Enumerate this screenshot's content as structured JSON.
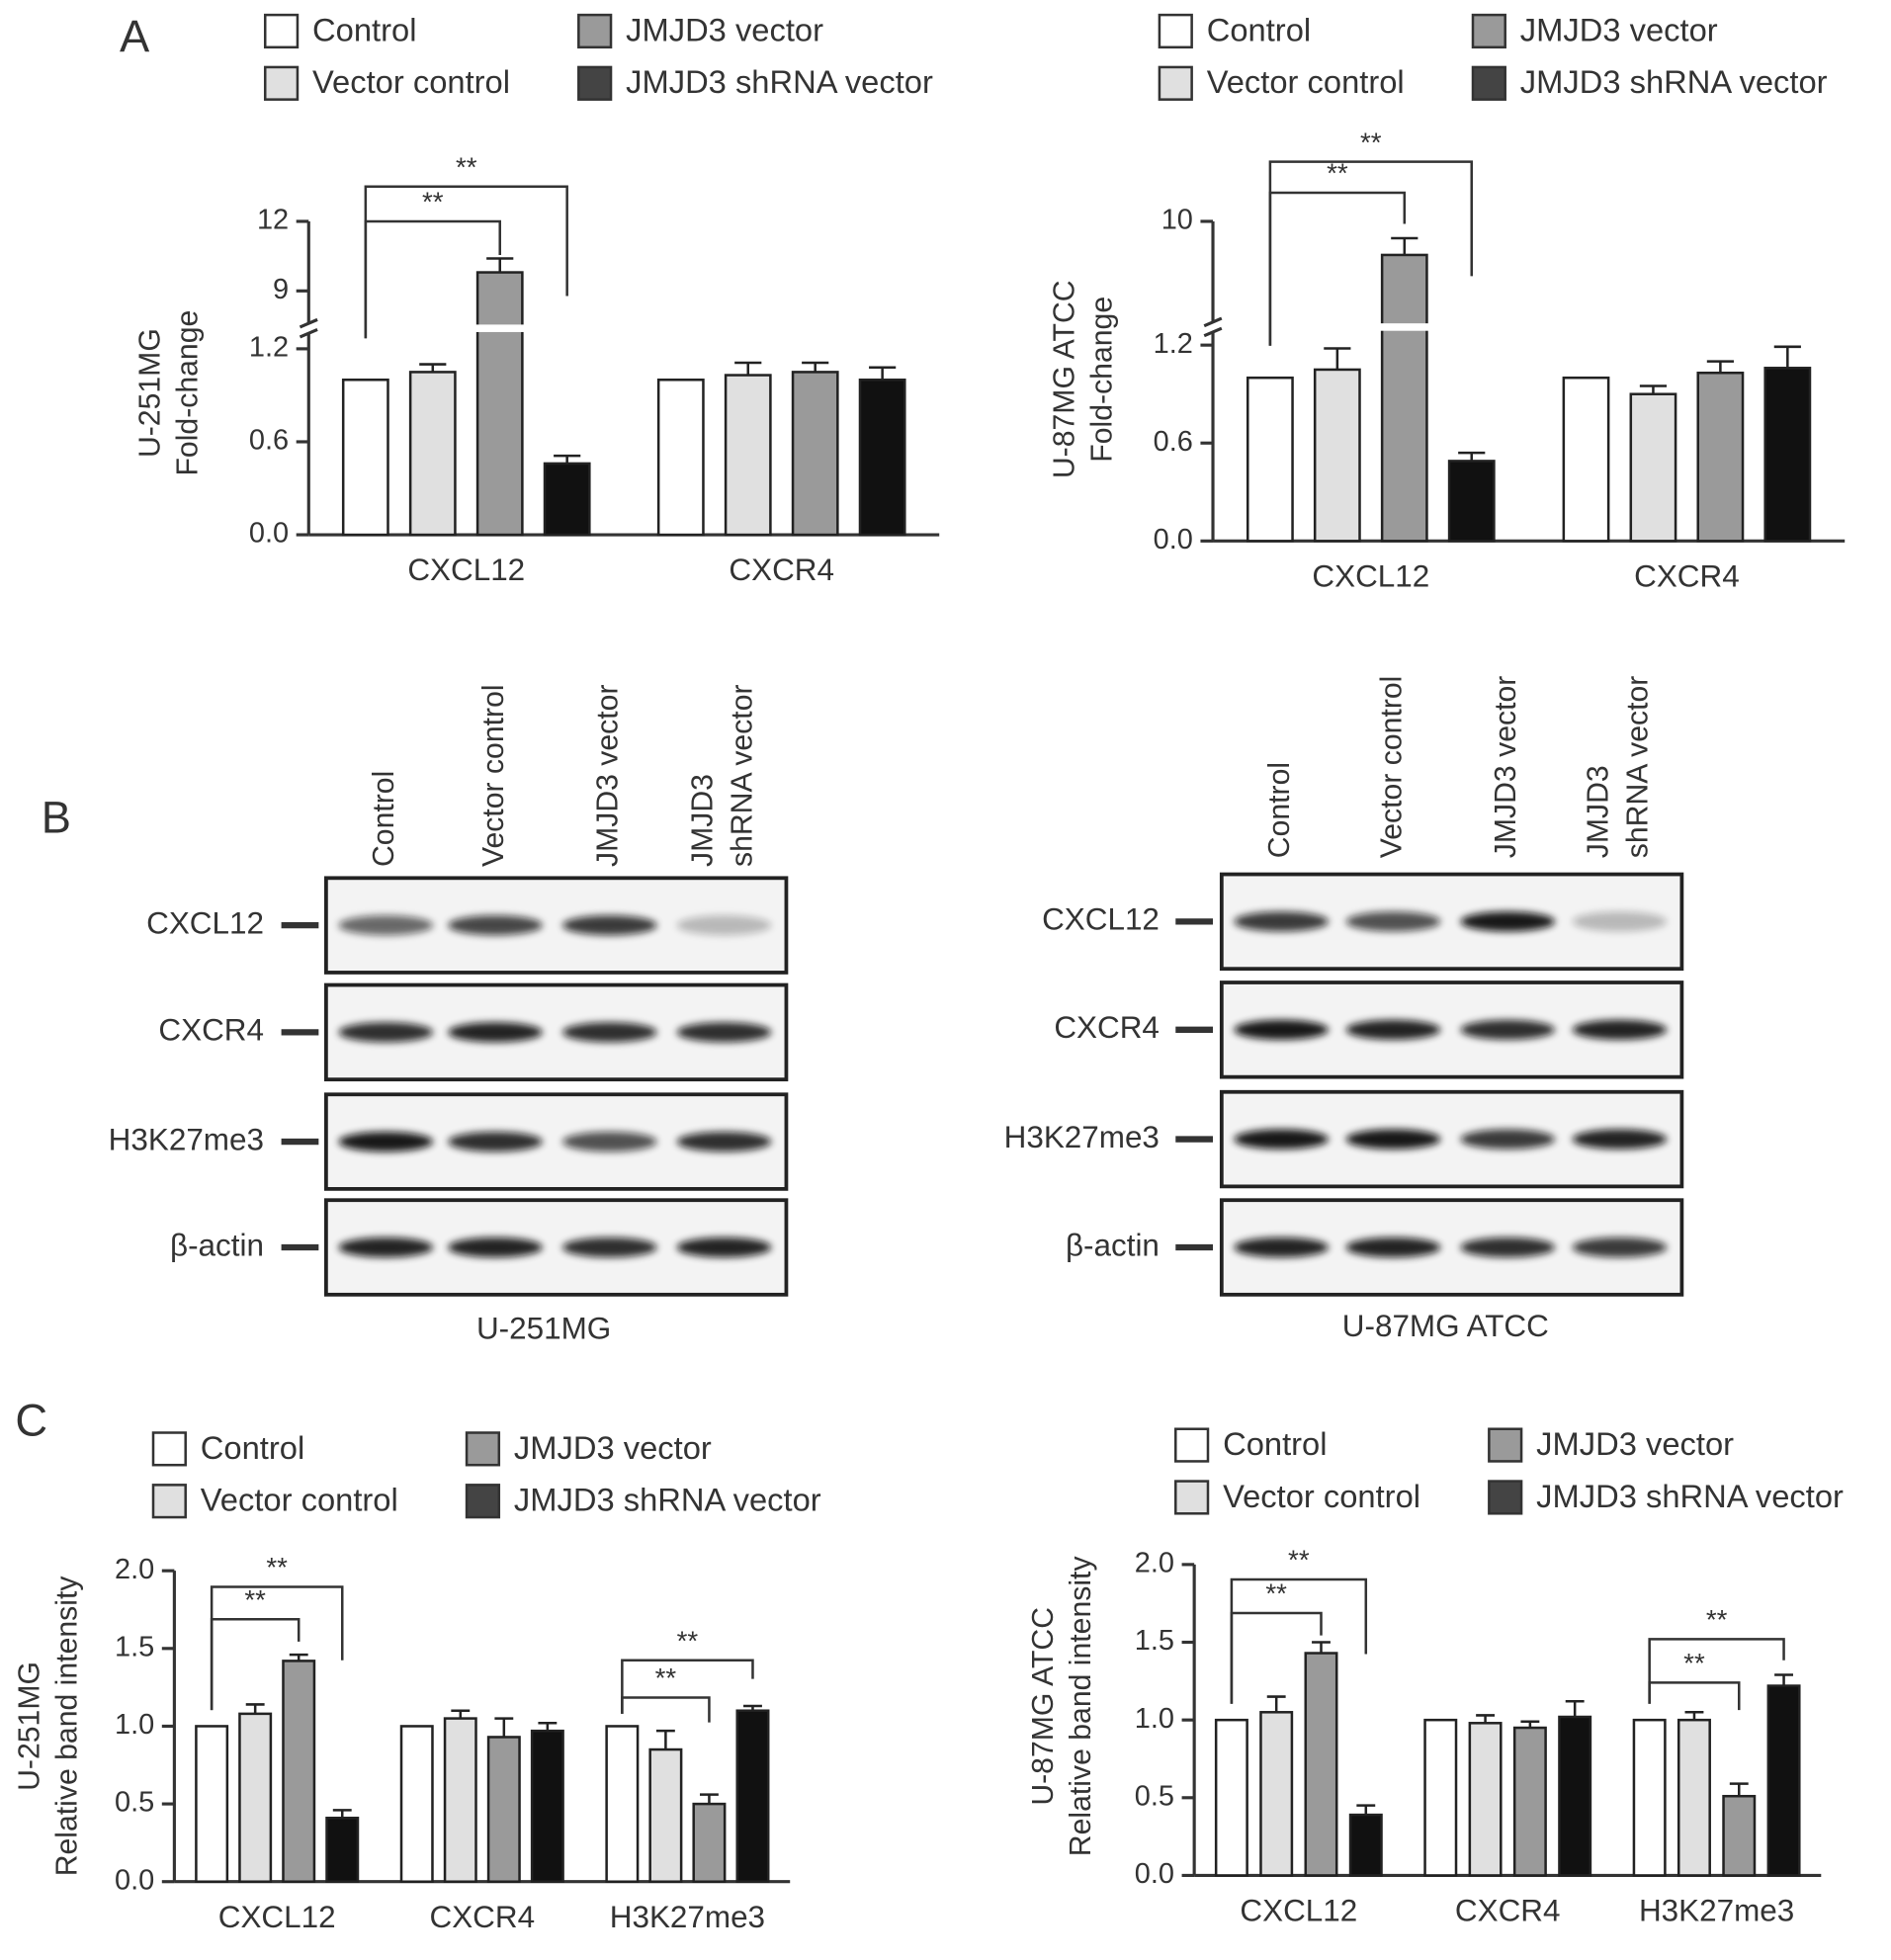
{
  "panel_labels": [
    "A",
    "B",
    "C"
  ],
  "chart_data": [
    {
      "type": "bar",
      "ylabel": [
        "U-251MG",
        "Fold-change"
      ],
      "categories": [
        "CXCL12",
        "CXCR4"
      ],
      "series": [
        {
          "name": "Control",
          "color": "#ffffff",
          "values": [
            1.0,
            1.0
          ],
          "errors": [
            null,
            null
          ]
        },
        {
          "name": "Vector control",
          "color": "#e0e0e0",
          "values": [
            1.05,
            1.03
          ],
          "errors": [
            0.05,
            0.08
          ]
        },
        {
          "name": "JMJD3 vector",
          "color": "#9a9a9a",
          "values": [
            9.8,
            1.05
          ],
          "errors": [
            0.6,
            0.06
          ]
        },
        {
          "name": "JMJD3 shRNA vector",
          "color": "#111111",
          "values": [
            0.46,
            1.0
          ],
          "errors": [
            0.05,
            0.08
          ]
        }
      ],
      "ylim": [
        0,
        12
      ],
      "ybreak": [
        1.3,
        7.6
      ],
      "yticks": [
        {
          "value": 0,
          "label": "0.0"
        },
        0.6,
        1.2,
        9,
        12
      ],
      "annotations": [
        "**",
        "**"
      ]
    },
    {
      "type": "bar",
      "ylabel": [
        "U-87MG ATCC",
        "Fold-change"
      ],
      "categories": [
        "CXCL12",
        "CXCR4"
      ],
      "series": [
        {
          "name": "Control",
          "color": "#ffffff",
          "values": [
            1.0,
            1.0
          ],
          "errors": [
            null,
            null
          ]
        },
        {
          "name": "Vector control",
          "color": "#e0e0e0",
          "values": [
            1.05,
            0.9
          ],
          "errors": [
            0.13,
            0.05
          ]
        },
        {
          "name": "JMJD3 vector",
          "color": "#9a9a9a",
          "values": [
            9.0,
            1.03
          ],
          "errors": [
            0.5,
            0.07
          ]
        },
        {
          "name": "JMJD3 shRNA vector",
          "color": "#111111",
          "values": [
            0.49,
            1.06
          ],
          "errors": [
            0.05,
            0.13
          ]
        }
      ],
      "ylim": [
        0,
        10
      ],
      "ybreak": [
        1.28,
        7
      ],
      "yticks": [
        {
          "value": 0,
          "label": "0.0"
        },
        0.6,
        1.2,
        10
      ],
      "annotations": [
        "**",
        "**"
      ]
    },
    {
      "type": "bar",
      "ylabel": [
        "U-251MG",
        "Relative band intensity"
      ],
      "categories": [
        "CXCL12",
        "CXCR4",
        "H3K27me3"
      ],
      "series": [
        {
          "name": "Control",
          "color": "#ffffff",
          "values": [
            1.0,
            1.0,
            1.0
          ],
          "errors": [
            null,
            null,
            null
          ]
        },
        {
          "name": "Vector control",
          "color": "#e0e0e0",
          "values": [
            1.08,
            1.05,
            0.85
          ],
          "errors": [
            0.06,
            0.05,
            0.12
          ]
        },
        {
          "name": "JMJD3 vector",
          "color": "#9a9a9a",
          "values": [
            1.42,
            0.93,
            0.5
          ],
          "errors": [
            0.04,
            0.12,
            0.06
          ]
        },
        {
          "name": "JMJD3 shRNA vector",
          "color": "#111111",
          "values": [
            0.41,
            0.97,
            1.1
          ],
          "errors": [
            0.05,
            0.05,
            0.03
          ]
        }
      ],
      "ylim": [
        0,
        2
      ],
      "yticks": [
        {
          "value": 0,
          "label": "0.0"
        },
        0.5,
        {
          "value": 1,
          "label": "1.0"
        },
        1.5,
        {
          "value": 2,
          "label": "2.0"
        }
      ],
      "annotations": [
        "**",
        "**",
        "**",
        "**"
      ]
    },
    {
      "type": "bar",
      "ylabel": [
        "U-87MG ATCC",
        "Relative band intensity"
      ],
      "categories": [
        "CXCL12",
        "CXCR4",
        "H3K27me3"
      ],
      "series": [
        {
          "name": "Control",
          "color": "#ffffff",
          "values": [
            1.0,
            1.0,
            1.0
          ],
          "errors": [
            null,
            null,
            null
          ]
        },
        {
          "name": "Vector control",
          "color": "#e0e0e0",
          "values": [
            1.05,
            0.98,
            1.0
          ],
          "errors": [
            0.1,
            0.05,
            0.05
          ]
        },
        {
          "name": "JMJD3 vector",
          "color": "#9a9a9a",
          "values": [
            1.43,
            0.95,
            0.51
          ],
          "errors": [
            0.07,
            0.04,
            0.08
          ]
        },
        {
          "name": "JMJD3 shRNA vector",
          "color": "#111111",
          "values": [
            0.39,
            1.02,
            1.22
          ],
          "errors": [
            0.06,
            0.1,
            0.07
          ]
        }
      ],
      "ylim": [
        0,
        2
      ],
      "yticks": [
        {
          "value": 0,
          "label": "0.0"
        },
        0.5,
        {
          "value": 1,
          "label": "1.0"
        },
        1.5,
        {
          "value": 2,
          "label": "2.0"
        }
      ],
      "annotations": [
        "**",
        "**",
        "**",
        "**"
      ]
    }
  ],
  "blots": [
    {
      "lanes": [
        [
          "Control"
        ],
        [
          "Vector control"
        ],
        [
          "JMJD3 vector"
        ],
        [
          "JMJD3",
          "shRNA vector"
        ]
      ],
      "rows": [
        "CXCL12",
        "CXCR4",
        "H3K27me3",
        "β-actin"
      ],
      "caption": "U-251MG"
    },
    {
      "lanes": [
        [
          "Control"
        ],
        [
          "Vector control"
        ],
        [
          "JMJD3 vector"
        ],
        [
          "JMJD3",
          "shRNA vector"
        ]
      ],
      "rows": [
        "CXCL12",
        "CXCR4",
        "H3K27me3",
        "β-actin"
      ],
      "caption": "U-87MG ATCC"
    }
  ]
}
